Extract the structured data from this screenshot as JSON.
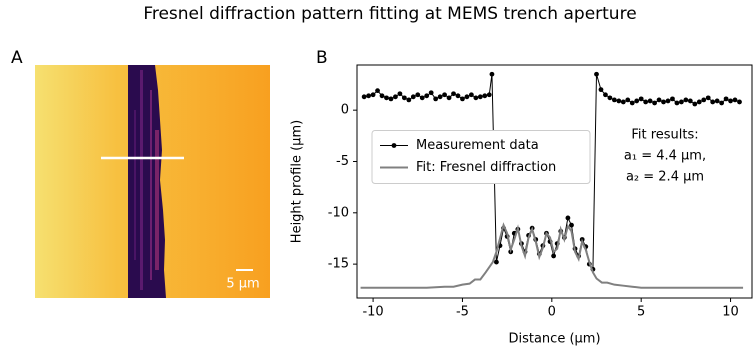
{
  "figure_title": "Fresnel diffraction pattern fitting at MEMS trench aperture",
  "panel_a": {
    "label": "A",
    "scale_bar": "5 μm"
  },
  "chart_data": {
    "type": "line",
    "panel_label": "B",
    "x_label": "Distance (μm)",
    "y_label": "Height profile (μm)",
    "xlim": [
      -10.9,
      11.2
    ],
    "ylim": [
      -18.3,
      4.4
    ],
    "xticks": [
      -10,
      -5,
      0,
      5,
      10
    ],
    "yticks": [
      -15,
      -10,
      -5,
      0
    ],
    "legend": "center left",
    "annotation": [
      "Fit results:",
      "a₁ = 4.4 μm,",
      "a₂ = 2.4 μm"
    ],
    "series": [
      {
        "name": "Measurement data",
        "color": "#000000",
        "marker": true,
        "x": [
          -10.5,
          -10.25,
          -10,
          -9.75,
          -9.5,
          -9.25,
          -9,
          -8.75,
          -8.5,
          -8.25,
          -8,
          -7.75,
          -7.5,
          -7.25,
          -7,
          -6.75,
          -6.5,
          -6.25,
          -6,
          -5.75,
          -5.5,
          -5.25,
          -5,
          -4.75,
          -4.5,
          -4.25,
          -4,
          -3.75,
          -3.5,
          -3.35,
          -3.1,
          -2.9,
          -2.7,
          -2.5,
          -2.3,
          -2.1,
          -1.9,
          -1.7,
          -1.5,
          -1.3,
          -1.1,
          -0.9,
          -0.7,
          -0.5,
          -0.3,
          -0.1,
          0.1,
          0.3,
          0.5,
          0.7,
          0.9,
          1.1,
          1.3,
          1.5,
          1.7,
          1.9,
          2.1,
          2.3,
          2.5,
          2.75,
          3,
          3.25,
          3.5,
          3.75,
          4,
          4.25,
          4.5,
          4.75,
          5,
          5.25,
          5.5,
          5.75,
          6,
          6.25,
          6.5,
          6.75,
          7,
          7.25,
          7.5,
          7.75,
          8,
          8.25,
          8.5,
          8.75,
          9,
          9.25,
          9.5,
          9.75,
          10,
          10.25,
          10.5
        ],
        "values": [
          1.3,
          1.4,
          1.5,
          1.9,
          1.4,
          1.2,
          1.1,
          1.3,
          1.6,
          1.2,
          1.0,
          1.3,
          1.5,
          1.2,
          1.4,
          1.7,
          1.1,
          1.3,
          1.5,
          1.2,
          1.6,
          1.4,
          1.1,
          1.3,
          1.5,
          1.2,
          1.3,
          1.4,
          1.5,
          3.5,
          -14.8,
          -13.2,
          -11.5,
          -12.3,
          -13.8,
          -12.0,
          -11.6,
          -13.0,
          -13.8,
          -12.2,
          -11.5,
          -12.6,
          -14.0,
          -13.2,
          -12.0,
          -12.8,
          -14.2,
          -13.0,
          -11.8,
          -12.4,
          -10.5,
          -11.2,
          -13.5,
          -14.2,
          -12.6,
          -13.3,
          -15.0,
          -15.5,
          3.5,
          2.0,
          1.5,
          1.2,
          1.0,
          0.9,
          0.8,
          1.0,
          0.7,
          0.9,
          1.1,
          0.8,
          0.9,
          0.7,
          1.0,
          0.8,
          0.9,
          1.1,
          0.7,
          0.8,
          1.0,
          0.9,
          0.6,
          0.8,
          1.0,
          1.2,
          0.8,
          0.9,
          0.7,
          1.1,
          0.9,
          1.0,
          0.8
        ]
      },
      {
        "name": "Fit: Fresnel diffraction",
        "color": "#808080",
        "marker": false,
        "x": [
          -10.7,
          -9,
          -7,
          -6,
          -5.5,
          -5,
          -4.6,
          -4.3,
          -4.0,
          -3.7,
          -3.5,
          -3.3,
          -3.1,
          -2.9,
          -2.7,
          -2.5,
          -2.3,
          -2.1,
          -1.9,
          -1.7,
          -1.5,
          -1.3,
          -1.1,
          -0.9,
          -0.7,
          -0.5,
          -0.3,
          -0.1,
          0.1,
          0.3,
          0.5,
          0.7,
          0.9,
          1.1,
          1.3,
          1.5,
          1.7,
          1.9,
          2.1,
          2.3,
          2.5,
          2.8,
          3.1,
          3.5,
          4,
          4.5,
          5,
          6,
          8,
          10.7
        ],
        "values": [
          -17.3,
          -17.3,
          -17.3,
          -17.2,
          -17.2,
          -17.0,
          -16.9,
          -16.5,
          -16.5,
          -15.8,
          -15.3,
          -14.8,
          -13.8,
          -12.5,
          -11.2,
          -12.0,
          -13.6,
          -12.6,
          -11.5,
          -13.2,
          -14.2,
          -12.4,
          -11.6,
          -12.8,
          -14.3,
          -13.4,
          -12.0,
          -12.4,
          -13.8,
          -13.5,
          -11.6,
          -12.6,
          -11.3,
          -11.8,
          -13.8,
          -14.5,
          -12.8,
          -13.6,
          -14.8,
          -15.8,
          -16.4,
          -16.8,
          -16.8,
          -17.0,
          -17.1,
          -17.2,
          -17.3,
          -17.3,
          -17.3,
          -17.3
        ]
      }
    ]
  }
}
